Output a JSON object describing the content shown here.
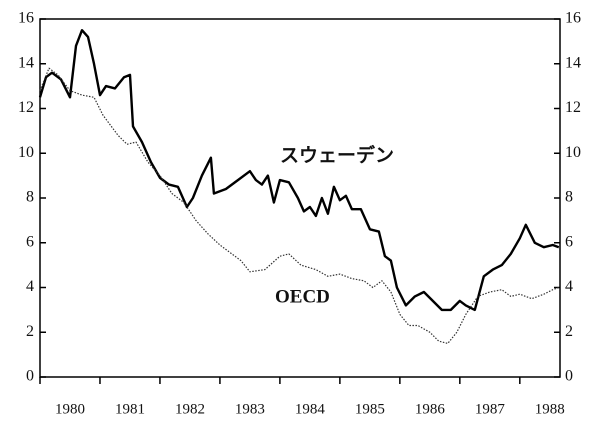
{
  "chart_data": {
    "type": "line",
    "xlim": [
      1980,
      1988.67
    ],
    "xticks": [
      1980,
      1981,
      1982,
      1983,
      1984,
      1985,
      1986,
      1987,
      1988
    ],
    "ylim": [
      0,
      16
    ],
    "yticks": [
      0,
      2,
      4,
      6,
      8,
      10,
      12,
      14,
      16
    ],
    "y2lim": [
      0,
      16
    ],
    "y2ticks": [
      0,
      2,
      4,
      6,
      8,
      10,
      12,
      14,
      16
    ],
    "series": [
      {
        "name": "スウェーデン",
        "color": "#000000",
        "style": "solid",
        "x": [
          1980.0,
          1980.1,
          1980.2,
          1980.35,
          1980.5,
          1980.6,
          1980.7,
          1980.8,
          1980.9,
          1981.0,
          1981.1,
          1981.25,
          1981.4,
          1981.5,
          1981.55,
          1981.7,
          1981.85,
          1982.0,
          1982.15,
          1982.3,
          1982.45,
          1982.55,
          1982.7,
          1982.85,
          1982.9,
          1983.1,
          1983.3,
          1983.5,
          1983.6,
          1983.7,
          1983.8,
          1983.9,
          1984.0,
          1984.15,
          1984.3,
          1984.4,
          1984.5,
          1984.6,
          1984.7,
          1984.8,
          1984.9,
          1985.0,
          1985.1,
          1985.2,
          1985.35,
          1985.5,
          1985.65,
          1985.75,
          1985.85,
          1985.95,
          1986.1,
          1986.25,
          1986.4,
          1986.55,
          1986.7,
          1986.85,
          1987.0,
          1987.1,
          1987.25,
          1987.4,
          1987.55,
          1987.7,
          1987.85,
          1988.0,
          1988.1,
          1988.25,
          1988.4,
          1988.55,
          1988.65
        ],
        "values": [
          12.5,
          13.4,
          13.6,
          13.3,
          12.5,
          14.8,
          15.5,
          15.2,
          14.0,
          12.6,
          13.0,
          12.9,
          13.4,
          13.5,
          11.2,
          10.5,
          9.6,
          8.9,
          8.6,
          8.5,
          7.6,
          8.0,
          9.0,
          9.8,
          8.2,
          8.4,
          8.8,
          9.2,
          8.8,
          8.6,
          9.0,
          7.8,
          8.8,
          8.7,
          8.0,
          7.4,
          7.6,
          7.2,
          8.0,
          7.3,
          8.5,
          7.9,
          8.1,
          7.5,
          7.5,
          6.6,
          6.5,
          5.4,
          5.2,
          4.0,
          3.2,
          3.6,
          3.8,
          3.4,
          3.0,
          3.0,
          3.4,
          3.2,
          3.0,
          4.5,
          4.8,
          5.0,
          5.5,
          6.2,
          6.8,
          6.0,
          5.8,
          5.9,
          5.8
        ]
      },
      {
        "name": "OECD",
        "color": "#333333",
        "style": "dotted",
        "x": [
          1980.0,
          1980.15,
          1980.3,
          1980.5,
          1980.7,
          1980.9,
          1981.05,
          1981.3,
          1981.45,
          1981.6,
          1981.8,
          1982.0,
          1982.2,
          1982.4,
          1982.6,
          1982.8,
          1983.0,
          1983.15,
          1983.35,
          1983.5,
          1983.75,
          1984.0,
          1984.15,
          1984.35,
          1984.6,
          1984.8,
          1985.0,
          1985.2,
          1985.4,
          1985.55,
          1985.7,
          1985.85,
          1986.0,
          1986.15,
          1986.3,
          1986.5,
          1986.65,
          1986.8,
          1986.95,
          1987.1,
          1987.3,
          1987.5,
          1987.7,
          1987.85,
          1988.0,
          1988.2,
          1988.4,
          1988.55,
          1988.65
        ],
        "values": [
          12.8,
          13.8,
          13.5,
          12.8,
          12.6,
          12.5,
          11.7,
          10.8,
          10.4,
          10.5,
          9.6,
          9.0,
          8.2,
          7.8,
          7.0,
          6.4,
          5.9,
          5.6,
          5.2,
          4.7,
          4.8,
          5.4,
          5.5,
          5.0,
          4.8,
          4.5,
          4.6,
          4.4,
          4.3,
          4.0,
          4.3,
          3.8,
          2.8,
          2.3,
          2.3,
          2.0,
          1.6,
          1.5,
          2.0,
          2.8,
          3.6,
          3.8,
          3.9,
          3.6,
          3.7,
          3.5,
          3.7,
          3.9,
          4.0
        ]
      }
    ]
  }
}
